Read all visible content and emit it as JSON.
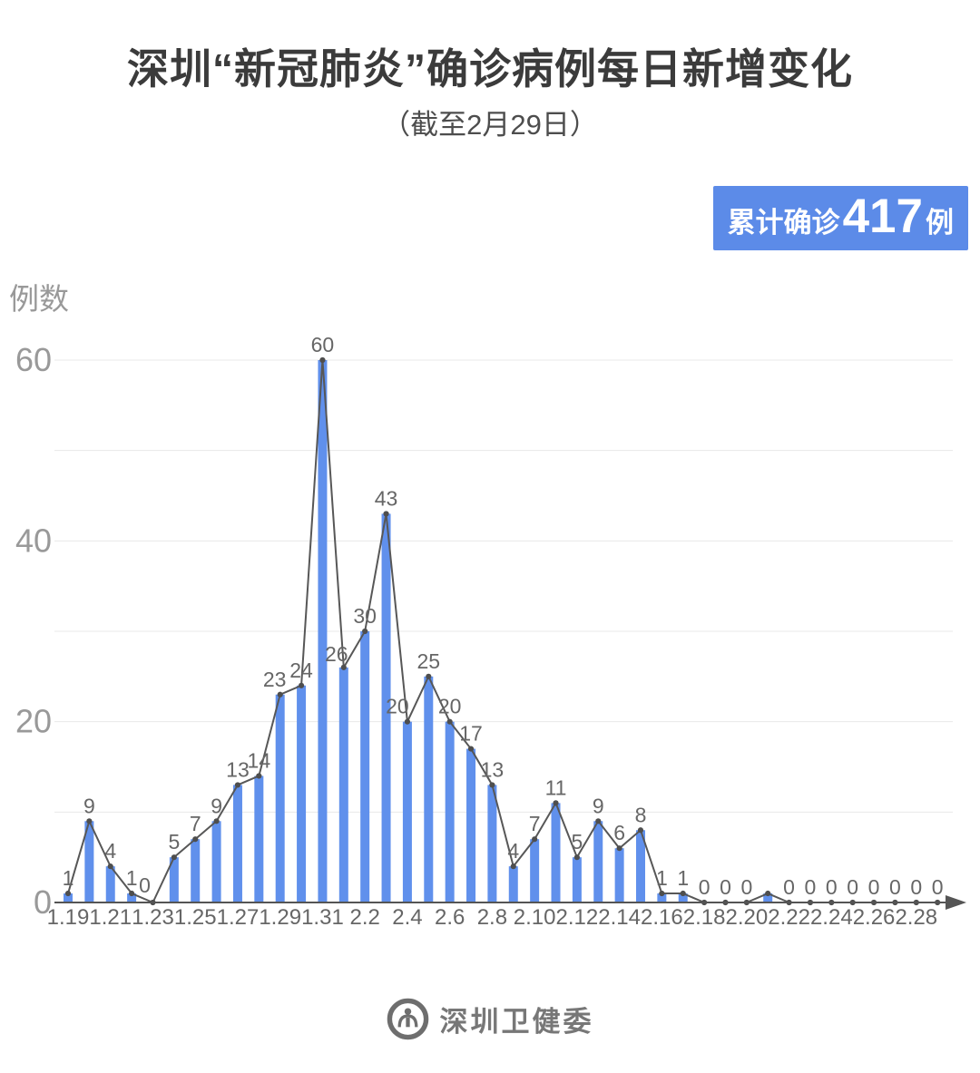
{
  "header": {
    "title": "深圳“新冠肺炎”确诊病例每日新增变化",
    "subtitle": "（截至2月29日）"
  },
  "badge": {
    "prefix": "累计确诊",
    "value": "417",
    "suffix": "例",
    "bg_color": "#5C8BE8",
    "text_color": "#FFFFFF"
  },
  "footer": {
    "brand": "深圳卫健委"
  },
  "colors": {
    "bar": "#6090EC",
    "line": "#575757",
    "marker": "#4E4E4E",
    "grid": "#E8E8E8",
    "axis": "#555555",
    "value_label": "#666666",
    "x_tick_label": "#666666",
    "y_tick_label": "#999999"
  },
  "chart_data": {
    "type": "bar",
    "title": "深圳“新冠肺炎”确诊病例每日新增变化",
    "subtitle": "（截至2月29日）",
    "xlabel": "",
    "ylabel": "例数",
    "ylim": [
      0,
      60
    ],
    "grid": true,
    "gridline_step": 10,
    "legend": false,
    "overlay": "line with point markers following bar values",
    "y_ticks_labeled": [
      0,
      20,
      40,
      60
    ],
    "categories": [
      "1.19",
      "1.20",
      "1.21",
      "1.22",
      "1.23",
      "1.24",
      "1.25",
      "1.26",
      "1.27",
      "1.28",
      "1.29",
      "1.30",
      "1.31",
      "2.1",
      "2.2",
      "2.3",
      "2.4",
      "2.5",
      "2.6",
      "2.7",
      "2.8",
      "2.9",
      "2.10",
      "2.11",
      "2.12",
      "2.13",
      "2.14",
      "2.15",
      "2.16",
      "2.17",
      "2.18",
      "2.19",
      "2.20",
      "2.21",
      "2.22",
      "2.23",
      "2.24",
      "2.25",
      "2.26",
      "2.27",
      "2.28",
      "2.29"
    ],
    "values": [
      1,
      9,
      4,
      1,
      0,
      5,
      7,
      9,
      13,
      14,
      23,
      24,
      60,
      26,
      30,
      43,
      20,
      25,
      20,
      17,
      13,
      4,
      7,
      11,
      5,
      9,
      6,
      8,
      1,
      1,
      0,
      0,
      0,
      1,
      0,
      0,
      0,
      0,
      0,
      0,
      0,
      0
    ],
    "x_tick_labels": [
      "1.19",
      "1.21",
      "1.23",
      "1.25",
      "1.27",
      "1.29",
      "1.31",
      "2.2",
      "2.4",
      "2.6",
      "2.8",
      "2.10",
      "2.12",
      "2.14",
      "2.16",
      "2.18",
      "2.20",
      "2.22",
      "2.24",
      "2.26",
      "2.28"
    ],
    "label_hidden_indices": [
      33
    ],
    "label_offsets": {
      "4": [
        -9,
        -2
      ],
      "10": [
        -6,
        0
      ],
      "13": [
        -8,
        2
      ],
      "16": [
        -11,
        0
      ]
    },
    "total_confirmed": 417
  }
}
